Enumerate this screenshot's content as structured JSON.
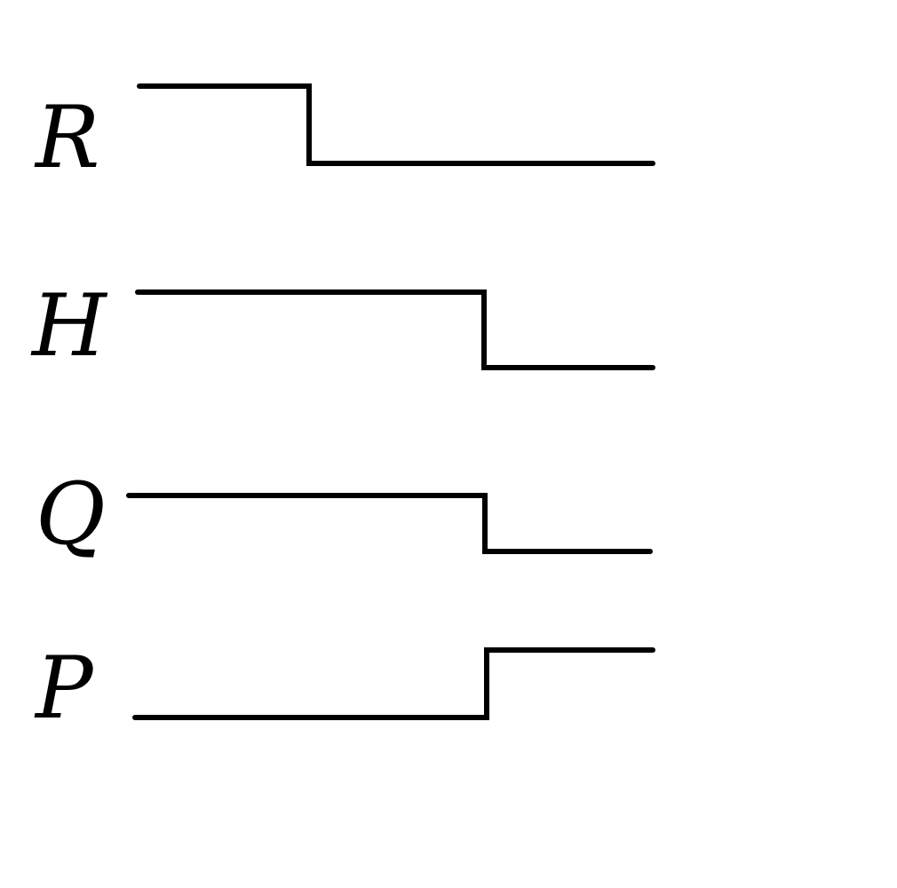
{
  "diagram": {
    "type": "timing-diagram",
    "line_color": "#000000",
    "background_color": "#ffffff",
    "signals": [
      {
        "label": "R",
        "initial_level": "high",
        "transitions_at_step": [
          1
        ],
        "final_level": "low"
      },
      {
        "label": "H",
        "initial_level": "high",
        "transitions_at_step": [
          2
        ],
        "final_level": "low"
      },
      {
        "label": "Q",
        "initial_level": "high",
        "transitions_at_step": [
          2
        ],
        "final_level": "low"
      },
      {
        "label": "P",
        "initial_level": "low",
        "transitions_at_step": [
          2
        ],
        "final_level": "high"
      }
    ],
    "time_steps": 3
  }
}
